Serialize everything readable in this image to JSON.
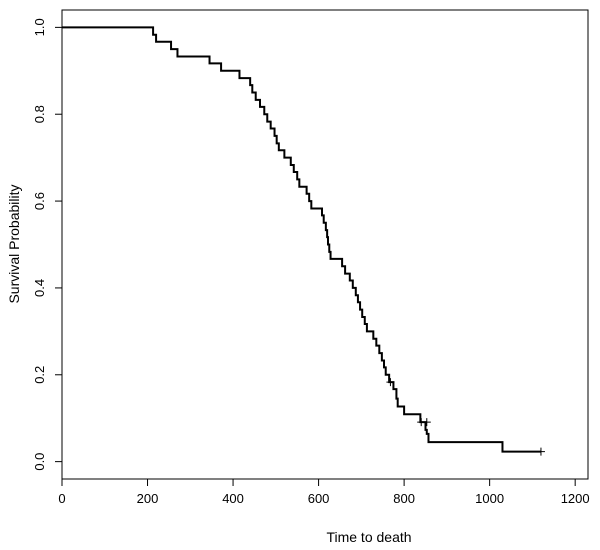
{
  "chart_data": {
    "type": "line",
    "subtype": "kaplan-meier-step",
    "title": "",
    "xlabel": "Time to death",
    "ylabel": "Survival Probability",
    "xlim": [
      0,
      1230
    ],
    "ylim": [
      -0.04,
      1.04
    ],
    "x_ticks": [
      0,
      200,
      400,
      600,
      800,
      1000,
      1200
    ],
    "x_tick_labels": [
      "0",
      "200",
      "400",
      "600",
      "800",
      "1000",
      "1200"
    ],
    "y_ticks": [
      0.0,
      0.2,
      0.4,
      0.6,
      0.8,
      1.0
    ],
    "y_tick_labels": [
      "0.0",
      "0.2",
      "0.4",
      "0.6",
      "0.8",
      "1.0"
    ],
    "grid": false,
    "legend": "none",
    "line_color": "#000000",
    "series": [
      {
        "steps": [
          [
            0,
            1.0
          ],
          [
            213,
            0.983
          ],
          [
            220,
            0.967
          ],
          [
            255,
            0.95
          ],
          [
            270,
            0.933
          ],
          [
            345,
            0.917
          ],
          [
            372,
            0.9
          ],
          [
            415,
            0.883
          ],
          [
            440,
            0.867
          ],
          [
            445,
            0.85
          ],
          [
            453,
            0.833
          ],
          [
            463,
            0.817
          ],
          [
            473,
            0.8
          ],
          [
            480,
            0.783
          ],
          [
            488,
            0.767
          ],
          [
            497,
            0.75
          ],
          [
            502,
            0.733
          ],
          [
            507,
            0.717
          ],
          [
            520,
            0.7
          ],
          [
            535,
            0.683
          ],
          [
            542,
            0.667
          ],
          [
            550,
            0.65
          ],
          [
            555,
            0.633
          ],
          [
            572,
            0.617
          ],
          [
            578,
            0.6
          ],
          [
            583,
            0.583
          ],
          [
            608,
            0.567
          ],
          [
            612,
            0.55
          ],
          [
            617,
            0.533
          ],
          [
            620,
            0.517
          ],
          [
            622,
            0.5
          ],
          [
            625,
            0.483
          ],
          [
            628,
            0.467
          ],
          [
            655,
            0.45
          ],
          [
            662,
            0.433
          ],
          [
            673,
            0.417
          ],
          [
            680,
            0.4
          ],
          [
            687,
            0.383
          ],
          [
            692,
            0.367
          ],
          [
            697,
            0.35
          ],
          [
            702,
            0.333
          ],
          [
            708,
            0.317
          ],
          [
            713,
            0.3
          ],
          [
            728,
            0.283
          ],
          [
            735,
            0.267
          ],
          [
            742,
            0.25
          ],
          [
            748,
            0.233
          ],
          [
            753,
            0.217
          ],
          [
            757,
            0.2
          ],
          [
            765,
            0.183
          ],
          [
            775,
            0.167
          ],
          [
            782,
            0.145
          ],
          [
            785,
            0.127
          ],
          [
            800,
            0.109
          ],
          [
            838,
            0.091
          ],
          [
            850,
            0.073
          ],
          [
            853,
            0.064
          ],
          [
            857,
            0.045
          ],
          [
            1030,
            0.023
          ],
          [
            1120,
            0.023
          ]
        ],
        "censored": [
          [
            768,
            0.183
          ],
          [
            840,
            0.091
          ],
          [
            853,
            0.091
          ],
          [
            1120,
            0.023
          ]
        ]
      }
    ]
  }
}
